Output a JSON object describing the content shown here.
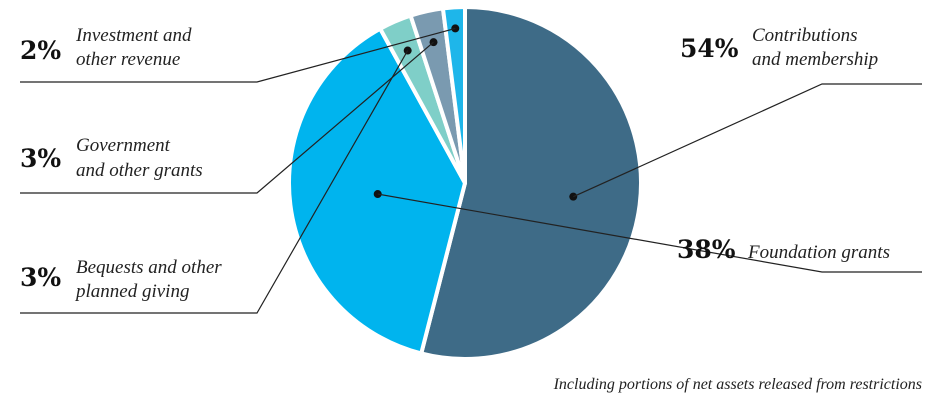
{
  "chart_data": {
    "type": "pie",
    "slices": [
      {
        "label": [
          "Contributions",
          "and membership"
        ],
        "pct_text": "54%",
        "value": 54,
        "color": "#3e6b87"
      },
      {
        "label": [
          "Foundation grants"
        ],
        "pct_text": "38%",
        "value": 38,
        "color": "#00b4ee"
      },
      {
        "label": [
          "Bequests and other",
          "planned giving"
        ],
        "pct_text": "3%",
        "value": 3,
        "color": "#7fcfc8"
      },
      {
        "label": [
          "Government",
          "and other grants"
        ],
        "pct_text": "3%",
        "value": 3,
        "color": "#7a9ab0"
      },
      {
        "label": [
          "Investment and",
          "other revenue"
        ],
        "pct_text": "2%",
        "value": 2,
        "color": "#1eb6ea"
      }
    ],
    "note": "Including portions of net assets released from restrictions"
  }
}
